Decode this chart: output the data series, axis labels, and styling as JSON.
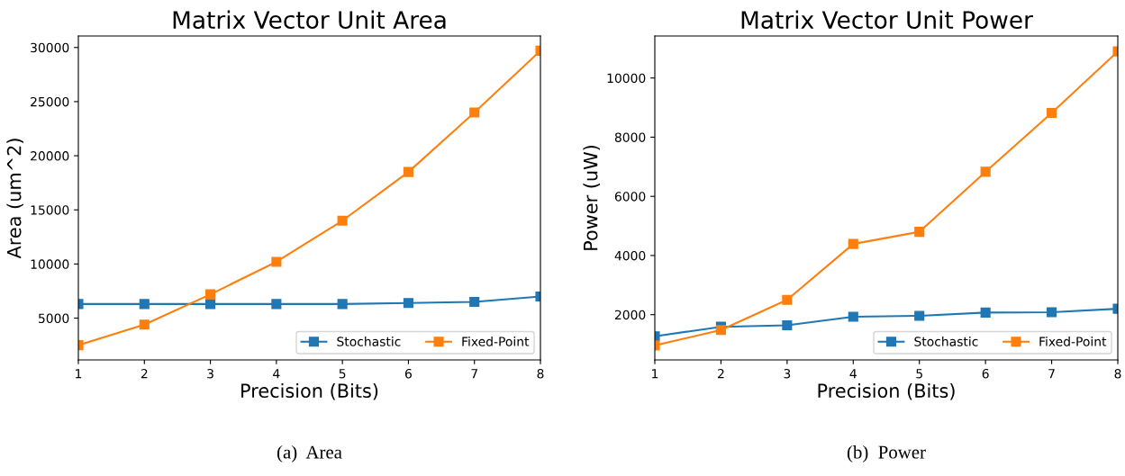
{
  "chart_data": [
    {
      "type": "line",
      "title": "Matrix Vector Unit Area",
      "xlabel": "Precision (Bits)",
      "ylabel": "Area (um^2)",
      "x": [
        1,
        2,
        3,
        4,
        5,
        6,
        7,
        8
      ],
      "xlim": [
        1,
        8
      ],
      "xticks": [
        1,
        2,
        3,
        4,
        5,
        6,
        7,
        8
      ],
      "ylim": [
        1140,
        31060
      ],
      "yticks": [
        5000,
        10000,
        15000,
        20000,
        25000,
        30000
      ],
      "marker": "square",
      "legend": "bottom right",
      "grid": false,
      "annotations": [
        "(a)  Area"
      ],
      "series": [
        {
          "name": "Stochastic",
          "color": "#1f77b4",
          "values": [
            6300,
            6300,
            6300,
            6300,
            6300,
            6400,
            6500,
            7000
          ]
        },
        {
          "name": "Fixed-Point",
          "color": "#ff7f0e",
          "values": [
            2500,
            4400,
            7200,
            10200,
            14000,
            18500,
            24000,
            29700
          ]
        }
      ]
    },
    {
      "type": "line",
      "title": "Matrix Vector Unit Power",
      "xlabel": "Precision (Bits)",
      "ylabel": "Power (uW)",
      "x": [
        1,
        2,
        3,
        4,
        5,
        6,
        7,
        8
      ],
      "xlim": [
        1,
        8
      ],
      "xticks": [
        1,
        2,
        3,
        4,
        5,
        6,
        7,
        8
      ],
      "ylim": [
        470,
        11420
      ],
      "yticks": [
        2000,
        4000,
        6000,
        8000,
        10000
      ],
      "marker": "square",
      "legend": "bottom right",
      "grid": false,
      "annotations": [
        "(b)  Power"
      ],
      "series": [
        {
          "name": "Stochastic",
          "color": "#1f77b4",
          "values": [
            1270,
            1590,
            1640,
            1930,
            1960,
            2070,
            2080,
            2200
          ]
        },
        {
          "name": "Fixed-Point",
          "color": "#ff7f0e",
          "values": [
            960,
            1480,
            2500,
            4390,
            4800,
            6830,
            8820,
            10900
          ]
        }
      ]
    }
  ]
}
